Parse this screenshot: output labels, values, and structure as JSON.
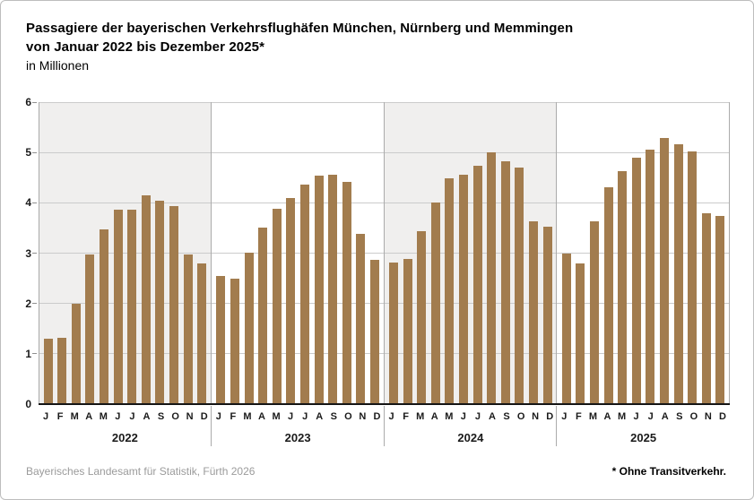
{
  "title": {
    "line1": "Passagiere der bayerischen Verkehrsflughäfen München, Nürnberg und Memmingen",
    "line2": "von Januar 2022 bis Dezember 2025*",
    "subtitle": "in Millionen"
  },
  "chart_data": {
    "type": "bar",
    "title": "Passagiere der bayerischen Verkehrsflughäfen München, Nürnberg und Memmingen von Januar 2022 bis Dezember 2025*",
    "ylabel": "in Millionen",
    "ylim": [
      0,
      6
    ],
    "yticks": [
      "0",
      "1",
      "2",
      "3",
      "4",
      "5",
      "6"
    ],
    "grid": true,
    "month_letters": [
      "J",
      "F",
      "M",
      "A",
      "M",
      "J",
      "J",
      "A",
      "S",
      "O",
      "N",
      "D"
    ],
    "bar_color": "#a27c4e",
    "shaded_band_color": "#f0efee",
    "plain_band_color": "#ffffff",
    "series": [
      {
        "year": "2022",
        "shaded": true,
        "values": [
          1.3,
          1.32,
          2.0,
          2.98,
          3.47,
          3.87,
          3.87,
          4.15,
          4.05,
          3.94,
          2.98,
          2.8
        ]
      },
      {
        "year": "2023",
        "shaded": false,
        "values": [
          2.55,
          2.5,
          3.0,
          3.51,
          3.88,
          4.1,
          4.36,
          4.54,
          4.56,
          4.42,
          3.38,
          2.87
        ]
      },
      {
        "year": "2024",
        "shaded": true,
        "values": [
          2.81,
          2.89,
          3.43,
          4.0,
          4.49,
          4.55,
          4.74,
          5.01,
          4.82,
          4.7,
          3.63,
          3.52
        ]
      },
      {
        "year": "2025",
        "shaded": false,
        "values": [
          2.99,
          2.8,
          3.64,
          4.31,
          4.63,
          4.89,
          5.05,
          5.29,
          5.17,
          5.02,
          3.79,
          3.73
        ]
      }
    ]
  },
  "footer": {
    "source": "Bayerisches Landesamt für Statistik, Fürth 2026",
    "note": "* Ohne Transitverkehr."
  }
}
